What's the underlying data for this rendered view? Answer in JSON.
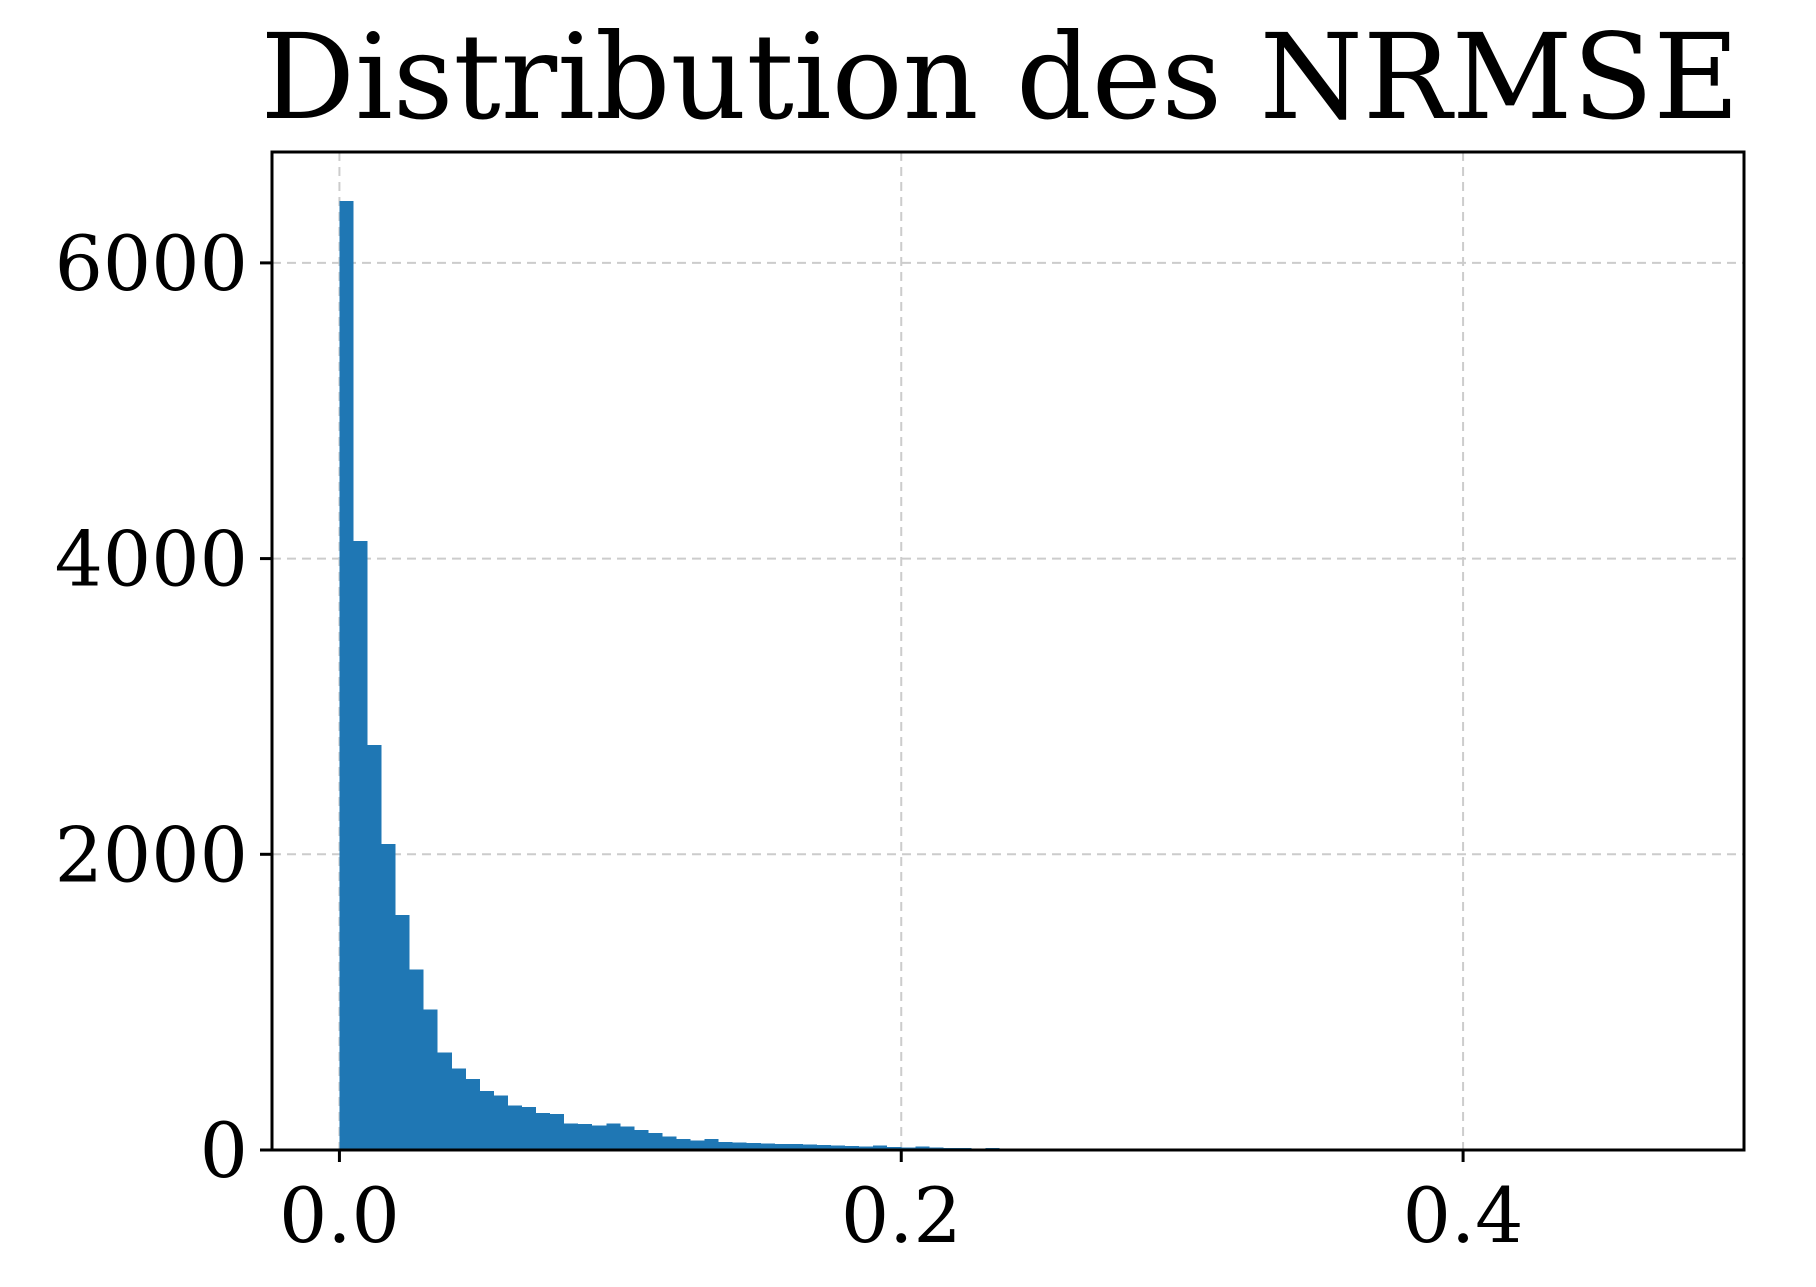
{
  "chart_data": {
    "type": "bar",
    "title": "Distribution des NRMSE",
    "xlabel": "",
    "ylabel": "",
    "xlim": [
      -0.024,
      0.5
    ],
    "ylim": [
      0,
      6750
    ],
    "grid": true,
    "bin_start": 0.0,
    "bin_width": 0.005,
    "values": [
      6420,
      4120,
      2740,
      2070,
      1590,
      1220,
      950,
      660,
      550,
      480,
      400,
      370,
      300,
      290,
      250,
      245,
      180,
      175,
      165,
      180,
      160,
      135,
      115,
      90,
      75,
      65,
      75,
      55,
      50,
      48,
      45,
      40,
      42,
      38,
      35,
      30,
      28,
      22,
      30,
      20,
      18,
      22,
      18,
      15,
      12,
      10,
      15,
      8,
      10,
      6,
      5,
      8,
      4,
      3,
      2,
      2,
      1
    ],
    "xticks": [
      {
        "value": 0.0,
        "label": "0.0"
      },
      {
        "value": 0.2,
        "label": "0.2"
      },
      {
        "value": 0.4,
        "label": "0.4"
      }
    ],
    "yticks": [
      {
        "value": 0,
        "label": "0"
      },
      {
        "value": 2000,
        "label": "2000"
      },
      {
        "value": 4000,
        "label": "4000"
      },
      {
        "value": 6000,
        "label": "6000"
      }
    ],
    "colors": {
      "bar": "#1f77b4",
      "grid": "#cccccc",
      "axes": "#000000"
    }
  }
}
